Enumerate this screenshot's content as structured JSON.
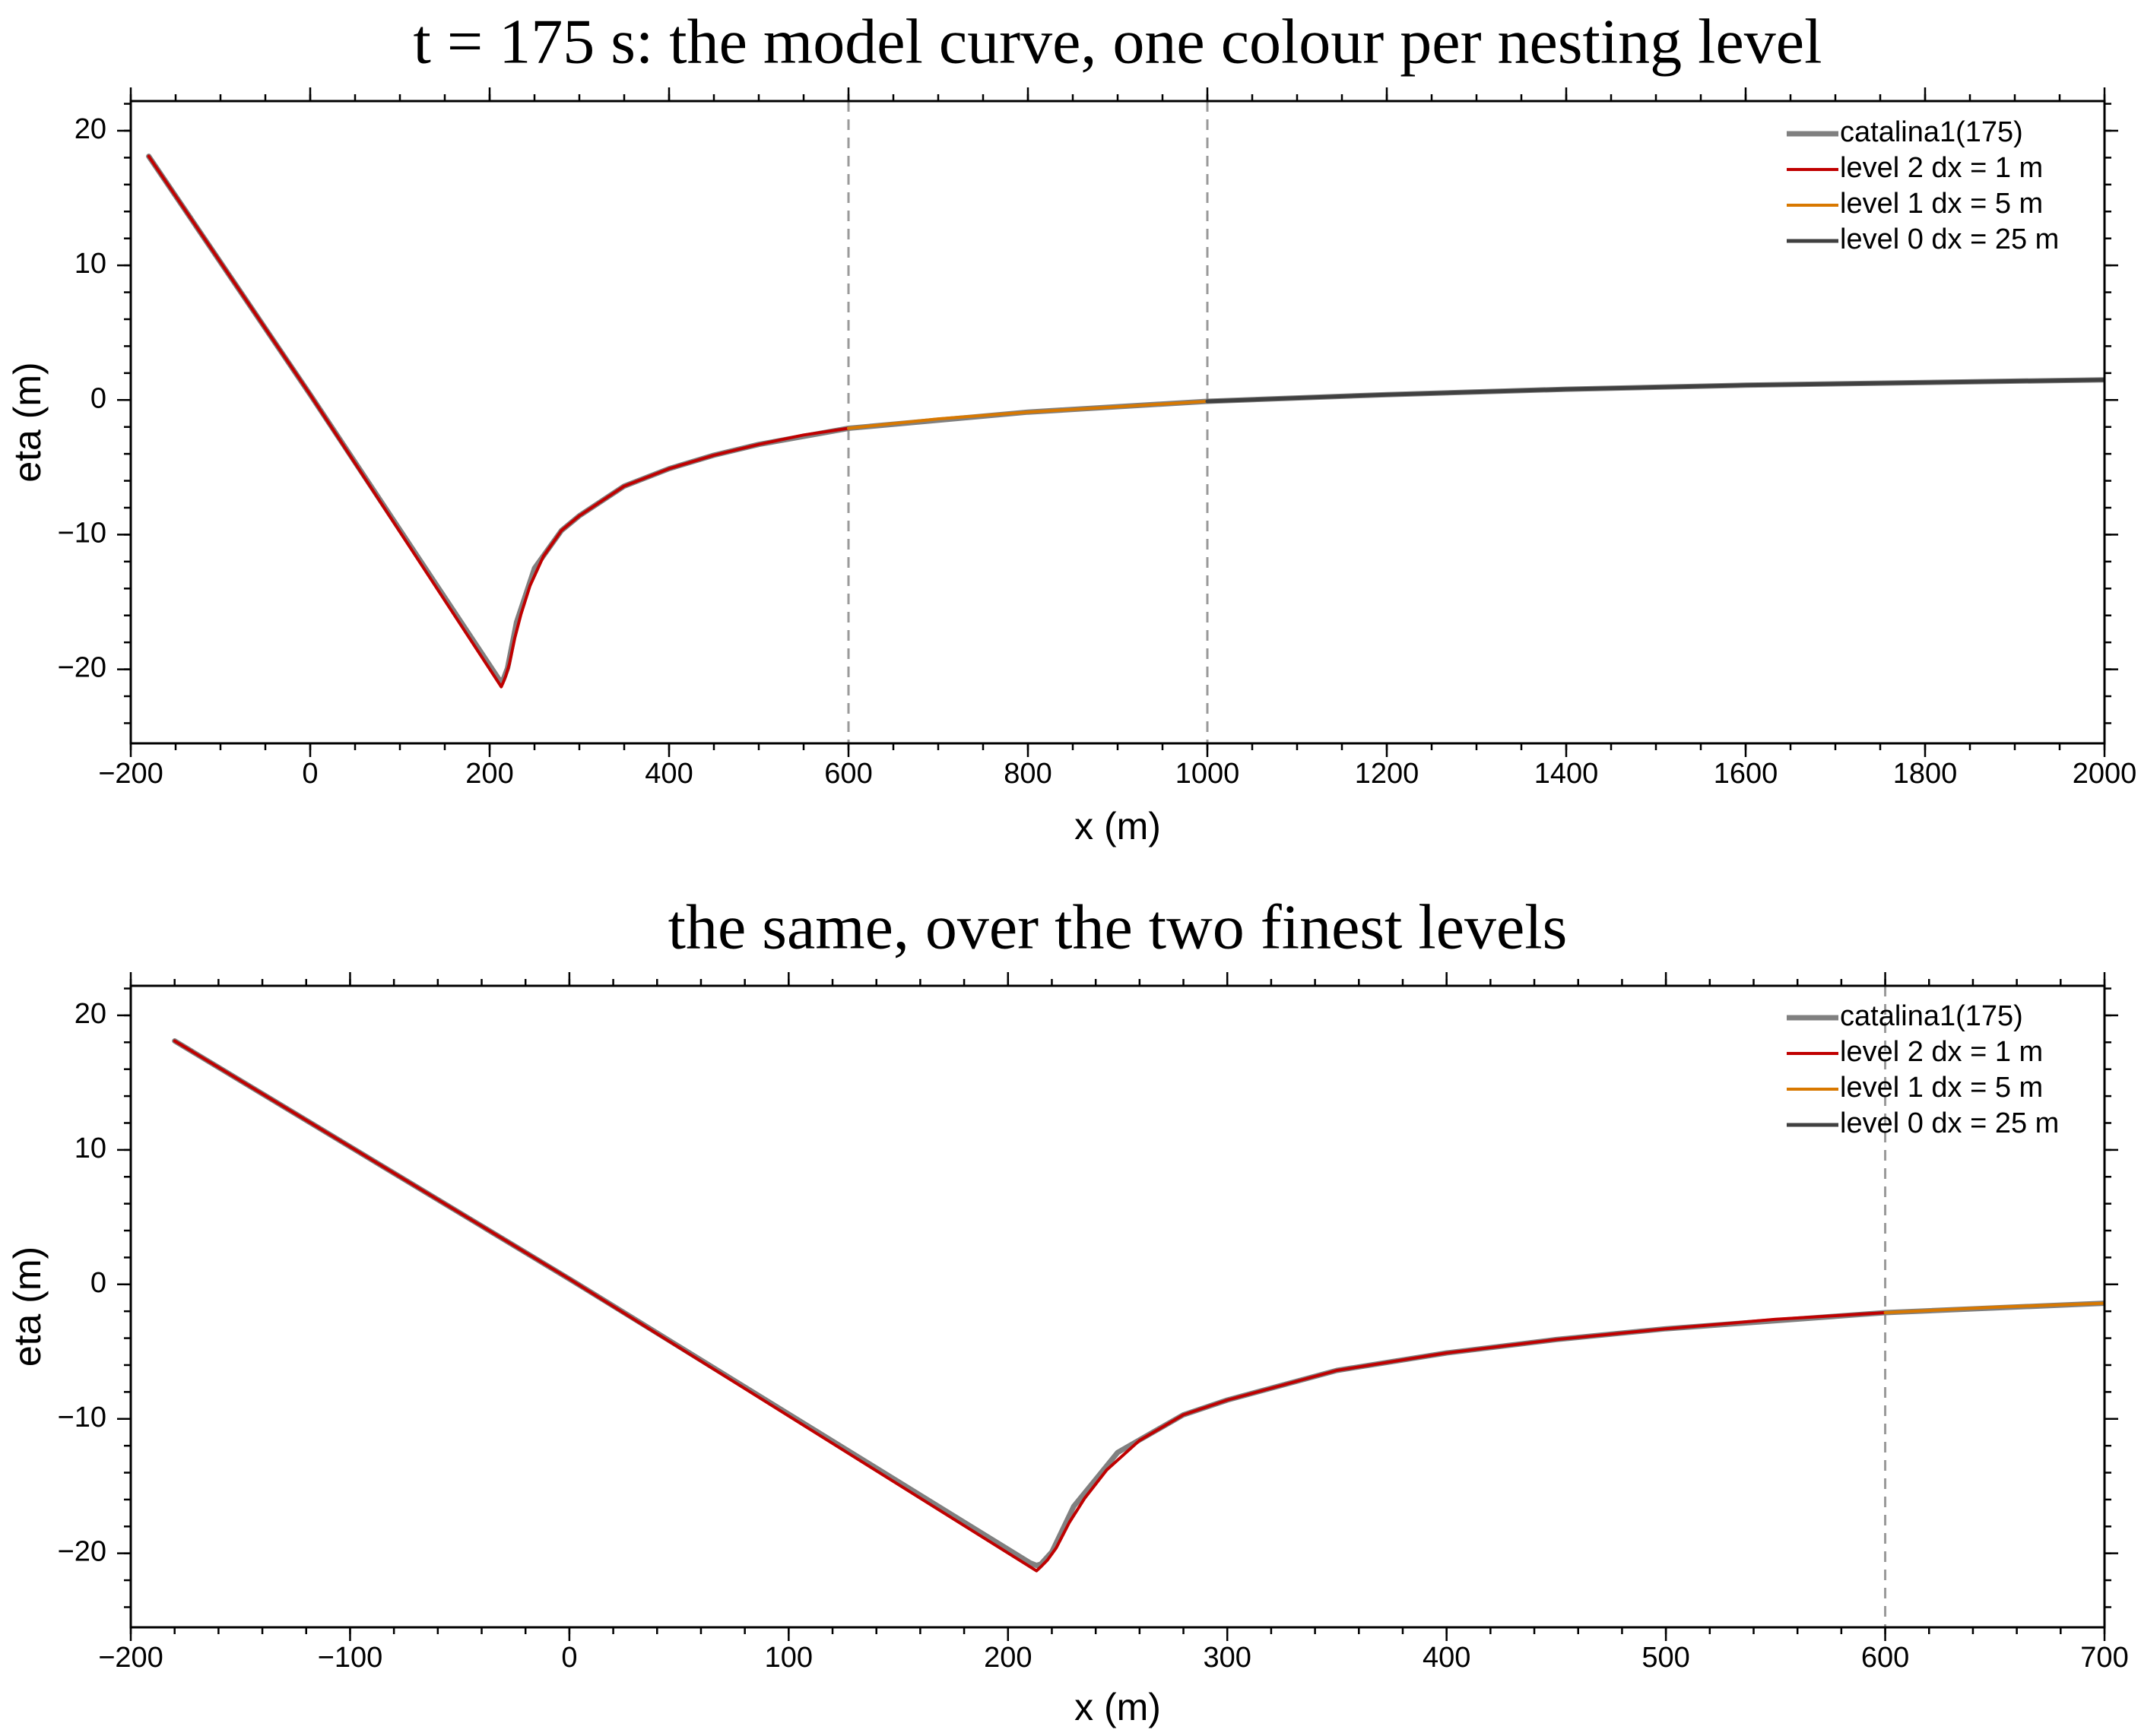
{
  "chart_data": [
    {
      "type": "line",
      "title": "t = 175 s: the model curve, one colour per nesting level",
      "xlabel": "x (m)",
      "ylabel": "eta (m)",
      "xlim": [
        -200,
        2000
      ],
      "ylim": [
        -25.5,
        22.2
      ],
      "x_ticks": [
        -200,
        0,
        200,
        400,
        600,
        800,
        1000,
        1200,
        1400,
        1600,
        1800,
        2000
      ],
      "x_tick_labels": [
        "−200",
        "0",
        "200",
        "400",
        "600",
        "800",
        "1000",
        "1200",
        "1400",
        "1600",
        "1800",
        "2000"
      ],
      "y_ticks": [
        -20,
        -10,
        0,
        10,
        20
      ],
      "y_tick_labels": [
        "−20",
        "−10",
        "0",
        "10",
        "20"
      ],
      "x_minor_step": 50,
      "y_minor_step": 2,
      "grid": false,
      "legend_position": "top-right",
      "boundaries_x": [
        600,
        1000
      ],
      "series": [
        {
          "name": "catalina1(175)",
          "color": "#808080",
          "width": 7,
          "x": [
            -180,
            0,
            210,
            213,
            215,
            220,
            230,
            250,
            280,
            300,
            350,
            400,
            450,
            500,
            600,
            800,
            1000,
            1200,
            1400,
            1600,
            1800,
            2000
          ],
          "y": [
            18.1,
            0.4,
            -20.7,
            -20.9,
            -20.8,
            -19.9,
            -16.5,
            -12.5,
            -9.7,
            -8.6,
            -6.4,
            -5.1,
            -4.1,
            -3.3,
            -2.1,
            -0.9,
            -0.1,
            0.4,
            0.8,
            1.1,
            1.3,
            1.5
          ]
        },
        {
          "name": "level 2  dx = 1 m",
          "color": "#c00000",
          "width": 4,
          "x": [
            -180,
            0,
            213,
            215,
            218,
            222,
            228,
            235,
            245,
            260,
            280,
            300,
            350,
            400,
            450,
            500,
            550,
            600
          ],
          "y": [
            18.1,
            0.4,
            -21.3,
            -21.0,
            -20.5,
            -19.6,
            -17.7,
            -15.9,
            -13.8,
            -11.6,
            -9.7,
            -8.6,
            -6.4,
            -5.1,
            -4.1,
            -3.3,
            -2.6,
            -2.1
          ]
        },
        {
          "name": "level 1  dx = 5 m",
          "color": "#d87800",
          "width": 4,
          "x": [
            600,
            700,
            800,
            900,
            1000
          ],
          "y": [
            -2.1,
            -1.4,
            -0.9,
            -0.5,
            -0.1
          ]
        },
        {
          "name": "level 0  dx = 25 m",
          "color": "#404040",
          "width": 5,
          "x": [
            1000,
            1200,
            1400,
            1600,
            1800,
            2000
          ],
          "y": [
            -0.1,
            0.4,
            0.8,
            1.1,
            1.3,
            1.5
          ]
        }
      ]
    },
    {
      "type": "line",
      "title": "the same, over the two finest levels",
      "xlabel": "x (m)",
      "ylabel": "eta (m)",
      "xlim": [
        -200,
        700
      ],
      "ylim": [
        -25.5,
        22.2
      ],
      "x_ticks": [
        -200,
        -100,
        0,
        100,
        200,
        300,
        400,
        500,
        600,
        700
      ],
      "x_tick_labels": [
        "−200",
        "−100",
        "0",
        "100",
        "200",
        "300",
        "400",
        "500",
        "600",
        "700"
      ],
      "y_ticks": [
        -20,
        -10,
        0,
        10,
        20
      ],
      "y_tick_labels": [
        "−20",
        "−10",
        "0",
        "10",
        "20"
      ],
      "x_minor_step": 20,
      "y_minor_step": 2,
      "grid": false,
      "legend_position": "top-right",
      "boundaries_x": [
        600
      ],
      "series": [
        {
          "name": "catalina1(175)",
          "color": "#808080",
          "width": 7,
          "x": [
            -180,
            0,
            210,
            213,
            215,
            220,
            230,
            250,
            280,
            300,
            350,
            400,
            450,
            500,
            600,
            700
          ],
          "y": [
            18.1,
            0.4,
            -20.7,
            -20.9,
            -20.8,
            -19.9,
            -16.5,
            -12.5,
            -9.7,
            -8.6,
            -6.4,
            -5.1,
            -4.1,
            -3.3,
            -2.1,
            -1.4
          ]
        },
        {
          "name": "level 2  dx = 1 m",
          "color": "#c00000",
          "width": 4,
          "x": [
            -180,
            0,
            213,
            215,
            218,
            222,
            228,
            235,
            245,
            260,
            280,
            300,
            350,
            400,
            450,
            500,
            550,
            600
          ],
          "y": [
            18.1,
            0.4,
            -21.3,
            -21.0,
            -20.5,
            -19.6,
            -17.7,
            -15.9,
            -13.8,
            -11.6,
            -9.7,
            -8.6,
            -6.4,
            -5.1,
            -4.1,
            -3.3,
            -2.6,
            -2.1
          ]
        },
        {
          "name": "level 1  dx = 5 m",
          "color": "#d87800",
          "width": 4,
          "x": [
            600,
            650,
            700
          ],
          "y": [
            -2.1,
            -1.7,
            -1.4
          ]
        },
        {
          "name": "level 0  dx = 25 m",
          "color": "#404040",
          "width": 5,
          "x": [],
          "y": []
        }
      ]
    }
  ]
}
